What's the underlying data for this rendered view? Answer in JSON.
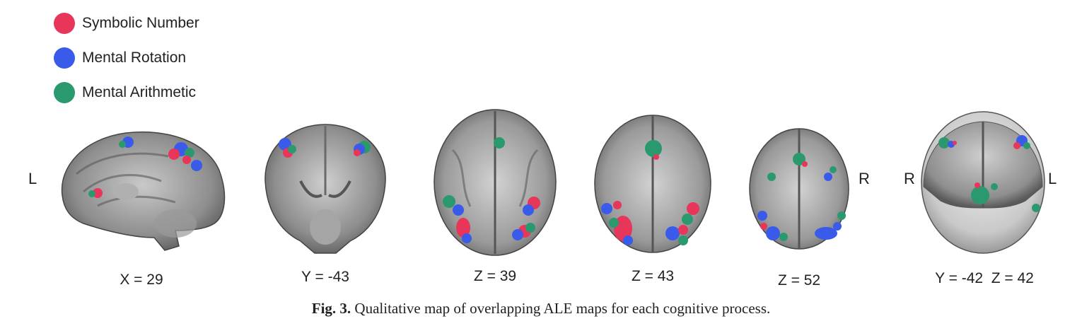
{
  "legend": [
    {
      "label": "Symbolic Number",
      "color": "#e8355a"
    },
    {
      "label": "Mental Rotation",
      "color": "#3a5bea"
    },
    {
      "label": "Mental Arithmetic",
      "color": "#2a9a6e"
    }
  ],
  "orientation": {
    "sagittal_left": "L",
    "axial_right": "R",
    "render_left": "R",
    "render_right": "L"
  },
  "panels": [
    {
      "label": "X = 29"
    },
    {
      "label": "Y = -43"
    },
    {
      "label": "Z = 39"
    },
    {
      "label": "Z = 43"
    },
    {
      "label": "Z = 52"
    },
    {
      "label": "Y = -42  Z = 42"
    }
  ],
  "caption": {
    "prefix": "Fig. 3.",
    "text": " Qualitative map of overlapping ALE maps for each cognitive process."
  }
}
